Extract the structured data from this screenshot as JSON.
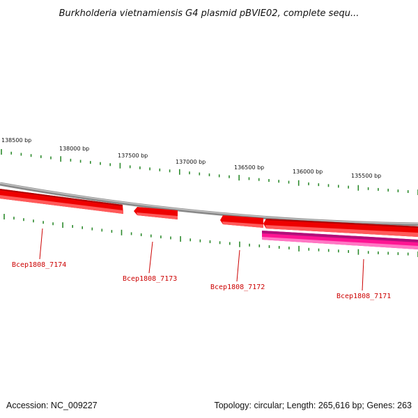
{
  "title": "Burkholderia vietnamiensis G4 plasmid pBVIE02, complete sequ...",
  "footer": {
    "accession": "Accession: NC_009227",
    "summary": "Topology: circular; Length: 265,616 bp; Genes: 263"
  },
  "ruler_labels": [
    "138500 bp",
    "138000 bp",
    "137500 bp",
    "137000 bp",
    "136500 bp",
    "136000 bp",
    "135500 bp"
  ],
  "genes": [
    {
      "name": "Bcep1808_7174",
      "strand": "forward",
      "color": "#ee0000"
    },
    {
      "name": "Bcep1808_7173",
      "strand": "forward",
      "color": "#ee0000"
    },
    {
      "name": "Bcep1808_7172",
      "strand": "forward",
      "color": "#ee0000"
    },
    {
      "name": "Bcep1808_7171",
      "strand": "forward",
      "color": "#ee0000"
    },
    {
      "name": "",
      "strand": "reverse",
      "color": "#ff1493"
    }
  ],
  "colors": {
    "backbone": "#808080",
    "tick": "#2e8b2e",
    "gene_forward": "#ee0000",
    "gene_reverse": "#ff1493",
    "label": "#cc0000"
  }
}
